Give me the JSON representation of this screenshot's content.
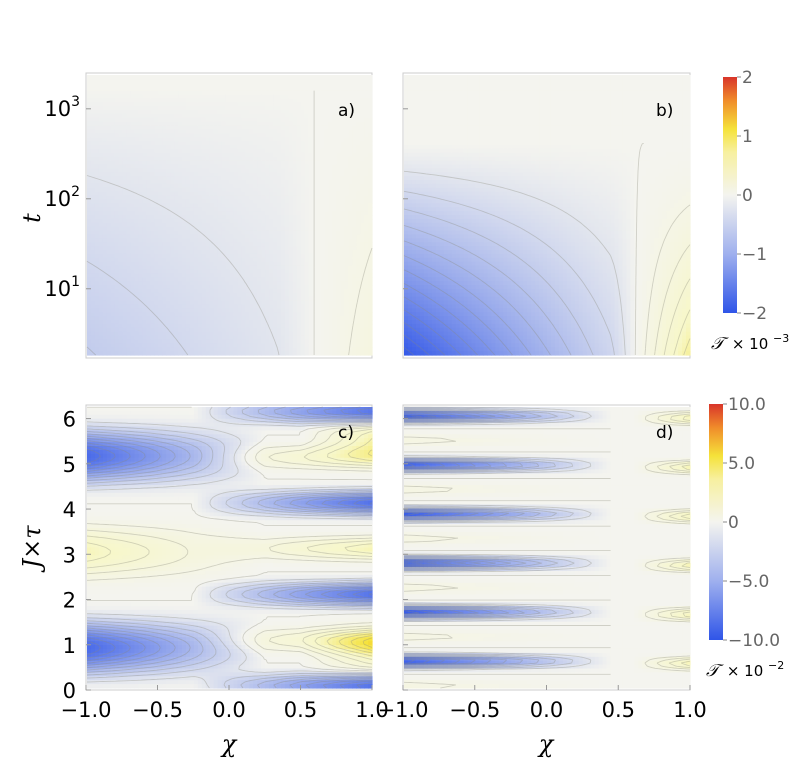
{
  "chart_data": [
    {
      "type": "heatmap",
      "panel_label": "a)",
      "xlabel": "",
      "ylabel": "t",
      "xlim": [
        -1.0,
        1.0
      ],
      "ylim": [
        1.7,
        2500
      ],
      "yscale": "log",
      "ytick_labels": [
        "10",
        "10",
        "10"
      ],
      "ytick_exponents": [
        "1",
        "2",
        "3"
      ],
      "ytick_values": [
        10,
        100,
        1000
      ],
      "value_range": [
        -0.35,
        0.35
      ],
      "colorbar": "top"
    },
    {
      "type": "heatmap",
      "panel_label": "b)",
      "xlabel": "",
      "ylabel": "",
      "xlim": [
        -1.0,
        1.0
      ],
      "ylim": [
        1.7,
        2500
      ],
      "yscale": "log",
      "value_range": [
        -1.9,
        0.75
      ],
      "colorbar": "top"
    },
    {
      "type": "heatmap",
      "panel_label": "c)",
      "xlabel": "χ",
      "ylabel": "J×τ",
      "xlim": [
        -1.0,
        1.0
      ],
      "ylim": [
        0,
        6.3
      ],
      "xtick_labels": [
        "−1.0",
        "−0.5",
        "0.0",
        "0.5",
        "1.0"
      ],
      "xtick_values": [
        -1.0,
        -0.5,
        0.0,
        0.5,
        1.0
      ],
      "ytick_labels": [
        "0",
        "1",
        "2",
        "3",
        "4",
        "5",
        "6"
      ],
      "ytick_values": [
        0,
        1,
        2,
        3,
        4,
        5,
        6
      ],
      "value_range": [
        -8.5,
        3.5
      ],
      "colorbar": "bottom"
    },
    {
      "type": "heatmap",
      "panel_label": "d)",
      "xlabel": "χ",
      "ylabel": "",
      "xlim": [
        -1.0,
        1.0
      ],
      "ylim": [
        0,
        6.3
      ],
      "xtick_labels": [
        "−1.0",
        "−0.5",
        "0.0",
        "0.5",
        "1.0"
      ],
      "xtick_values": [
        -1.0,
        -0.5,
        0.0,
        0.5,
        1.0
      ],
      "value_range": [
        -9.5,
        3.5
      ],
      "colorbar": "bottom"
    }
  ],
  "colorbars": {
    "top": {
      "ticks": [
        "2",
        "1",
        "0",
        "−1",
        "−2"
      ],
      "tick_values": [
        2,
        1,
        0,
        -1,
        -2
      ],
      "range": [
        -2,
        2
      ],
      "label_symbol": "𝒯",
      "label_factor": "× 10",
      "label_exponent": "−3"
    },
    "bottom": {
      "ticks": [
        "10.0",
        "5.0",
        "0",
        "−5.0",
        "−10.0"
      ],
      "tick_values": [
        10,
        5,
        0,
        -5,
        -10
      ],
      "range": [
        -10,
        10
      ],
      "label_symbol": "𝒯",
      "label_factor": "× 10",
      "label_exponent": "−2"
    }
  },
  "colors": {
    "negative": "#2f55e8",
    "zero": "#f4f4ef",
    "weak_positive": "#f7f7c8",
    "positive": "#f5e23a",
    "strong_positive": "#f08c2a",
    "max_positive": "#d8352a",
    "contour": "#8a8a7a"
  }
}
